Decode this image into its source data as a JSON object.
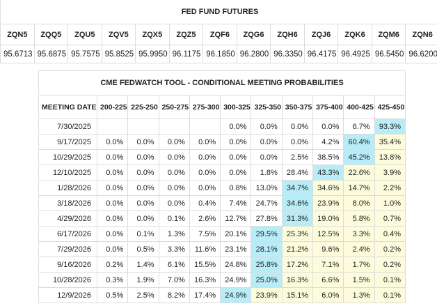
{
  "futures": {
    "title": "FED FUND FUTURES",
    "headers": [
      "ZQN5",
      "ZQQ5",
      "ZQU5",
      "ZQV5",
      "ZQX5",
      "ZQZ5",
      "ZQF6",
      "ZQG6",
      "ZQH6",
      "ZQJ6",
      "ZQK6",
      "ZQM6",
      "ZQN6"
    ],
    "values": [
      "95.6713",
      "95.6875",
      "95.7575",
      "95.8525",
      "95.9950",
      "96.1175",
      "96.1850",
      "96.2800",
      "96.3350",
      "96.4175",
      "96.4925",
      "96.5450",
      "96.6200"
    ]
  },
  "probabilities": {
    "title": "CME FEDWATCH TOOL - CONDITIONAL MEETING PROBABILITIES",
    "date_header": "MEETING DATE",
    "ranges": [
      "200-225",
      "225-250",
      "250-275",
      "275-300",
      "300-325",
      "325-350",
      "350-375",
      "375-400",
      "400-425",
      "425-450"
    ],
    "rows": [
      {
        "date": "7/30/2025",
        "cells": [
          null,
          null,
          null,
          null,
          "0.0%",
          "0.0%",
          "0.0%",
          "0.0%",
          "6.7%",
          "93.3%"
        ]
      },
      {
        "date": "9/17/2025",
        "cells": [
          "0.0%",
          "0.0%",
          "0.0%",
          "0.0%",
          "0.0%",
          "0.0%",
          "0.0%",
          "4.2%",
          "60.4%",
          "35.4%"
        ]
      },
      {
        "date": "10/29/2025",
        "cells": [
          "0.0%",
          "0.0%",
          "0.0%",
          "0.0%",
          "0.0%",
          "0.0%",
          "2.5%",
          "38.5%",
          "45.2%",
          "13.8%"
        ]
      },
      {
        "date": "12/10/2025",
        "cells": [
          "0.0%",
          "0.0%",
          "0.0%",
          "0.0%",
          "0.0%",
          "1.8%",
          "28.4%",
          "43.3%",
          "22.6%",
          "3.9%"
        ]
      },
      {
        "date": "1/28/2026",
        "cells": [
          "0.0%",
          "0.0%",
          "0.0%",
          "0.0%",
          "0.8%",
          "13.0%",
          "34.7%",
          "34.6%",
          "14.7%",
          "2.2%"
        ]
      },
      {
        "date": "3/18/2026",
        "cells": [
          "0.0%",
          "0.0%",
          "0.0%",
          "0.4%",
          "7.4%",
          "24.7%",
          "34.6%",
          "23.9%",
          "8.0%",
          "1.0%"
        ]
      },
      {
        "date": "4/29/2026",
        "cells": [
          "0.0%",
          "0.0%",
          "0.1%",
          "2.6%",
          "12.7%",
          "27.8%",
          "31.3%",
          "19.0%",
          "5.8%",
          "0.7%"
        ]
      },
      {
        "date": "6/17/2026",
        "cells": [
          "0.0%",
          "0.1%",
          "1.3%",
          "7.5%",
          "20.1%",
          "29.5%",
          "25.3%",
          "12.5%",
          "3.3%",
          "0.4%"
        ]
      },
      {
        "date": "7/29/2026",
        "cells": [
          "0.0%",
          "0.5%",
          "3.3%",
          "11.6%",
          "23.1%",
          "28.1%",
          "21.2%",
          "9.6%",
          "2.4%",
          "0.2%"
        ]
      },
      {
        "date": "9/16/2026",
        "cells": [
          "0.2%",
          "1.4%",
          "6.1%",
          "15.5%",
          "24.8%",
          "25.8%",
          "17.2%",
          "7.1%",
          "1.7%",
          "0.2%"
        ]
      },
      {
        "date": "10/28/2026",
        "cells": [
          "0.3%",
          "1.9%",
          "7.0%",
          "16.3%",
          "24.9%",
          "25.0%",
          "16.3%",
          "6.6%",
          "1.5%",
          "0.1%"
        ]
      },
      {
        "date": "12/9/2026",
        "cells": [
          "0.5%",
          "2.5%",
          "8.2%",
          "17.4%",
          "24.9%",
          "23.9%",
          "15.1%",
          "6.0%",
          "1.3%",
          "0.1%"
        ]
      }
    ]
  }
}
